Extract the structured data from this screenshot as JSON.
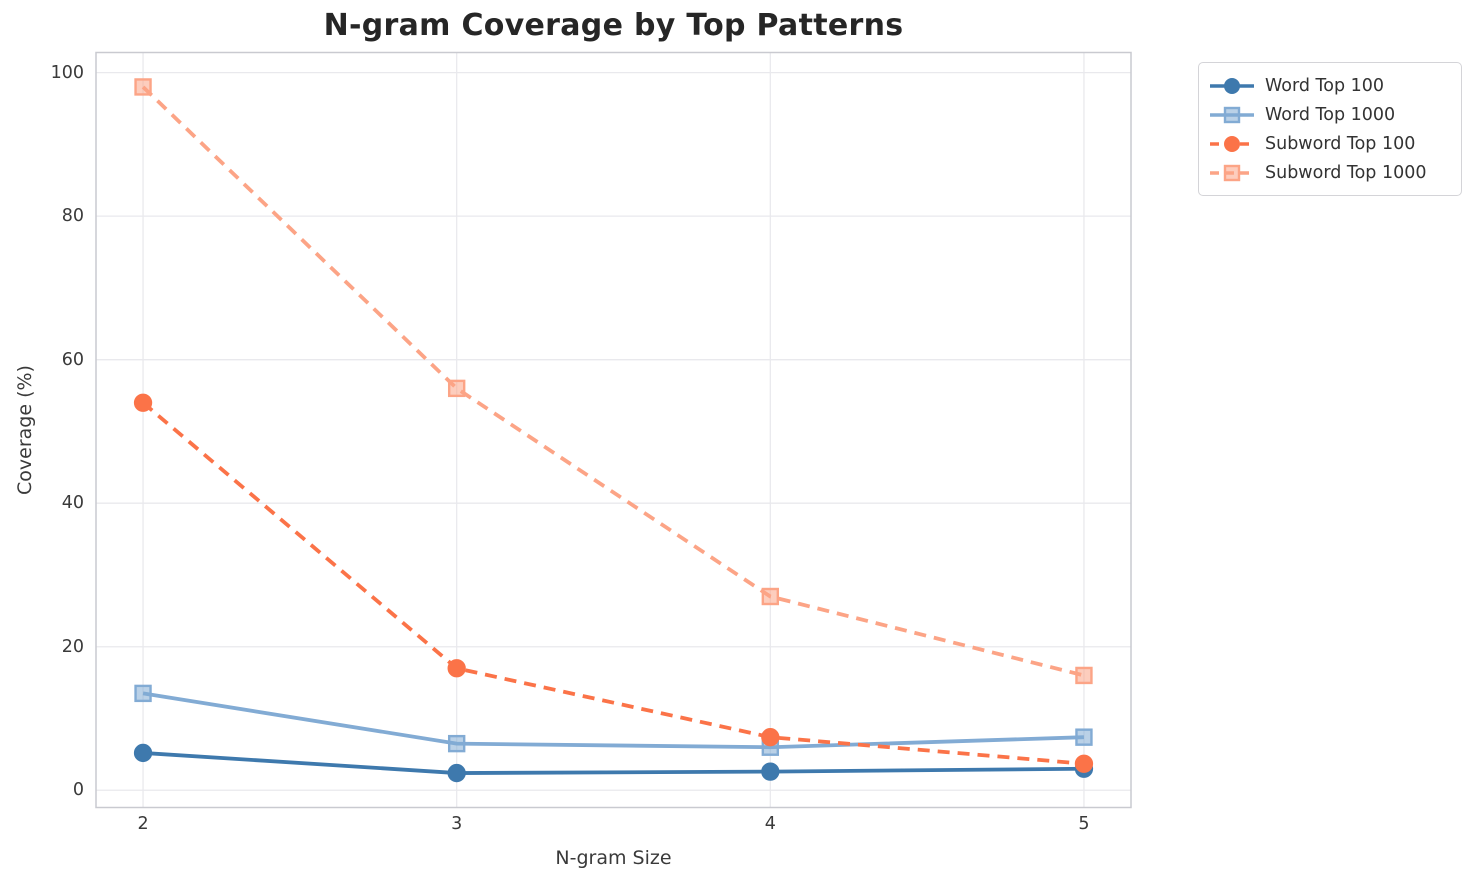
{
  "chart_data": {
    "type": "line",
    "title": "N-gram Coverage by Top Patterns",
    "xlabel": "N-gram Size",
    "ylabel": "Coverage (%)",
    "x": [
      2,
      3,
      4,
      5
    ],
    "xticks": [
      "2",
      "3",
      "4",
      "5"
    ],
    "yticks": [
      "0",
      "20",
      "40",
      "60",
      "80",
      "100"
    ],
    "xlim": [
      1.85,
      5.15
    ],
    "ylim": [
      -2.4,
      102.8
    ],
    "grid": true,
    "legend_position": "outside-upper-right",
    "series": [
      {
        "name": "Word Top 100",
        "marker": "circle",
        "line_style": "solid",
        "color": "#3E79AD",
        "values": [
          5.2,
          2.4,
          2.6,
          3.0
        ]
      },
      {
        "name": "Word Top 1000",
        "marker": "square",
        "line_style": "solid",
        "color": "#82ABD4",
        "values": [
          13.5,
          6.5,
          6.0,
          7.4
        ]
      },
      {
        "name": "Subword Top 100",
        "marker": "circle",
        "line_style": "dashed",
        "color": "#FB7348",
        "values": [
          54,
          17,
          7.4,
          3.7
        ]
      },
      {
        "name": "Subword Top 1000",
        "marker": "square",
        "line_style": "dashed",
        "color": "#FCA486",
        "values": [
          98,
          56,
          27,
          16
        ]
      }
    ]
  }
}
